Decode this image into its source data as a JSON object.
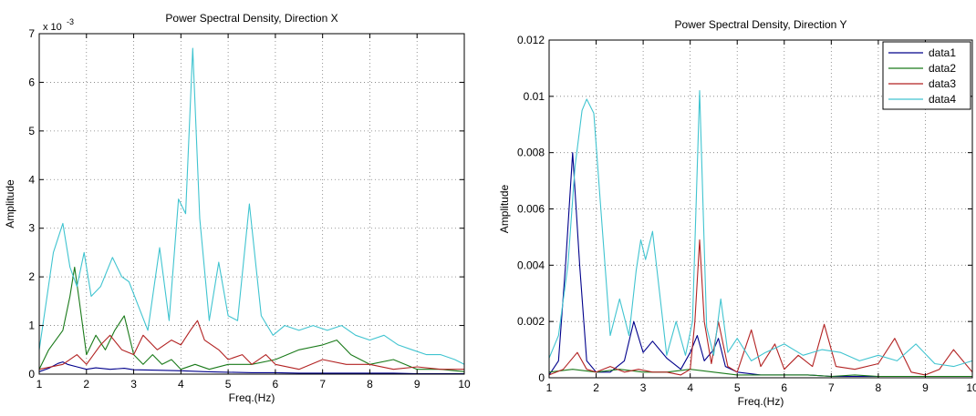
{
  "chart_data": [
    {
      "type": "line",
      "title": "Power Spectral Density, Direction X",
      "xlabel": "Freq.(Hz)",
      "ylabel": "Amplitude",
      "xlim": [
        1,
        10
      ],
      "ylim": [
        0,
        0.007
      ],
      "xticks": [
        1,
        2,
        3,
        4,
        5,
        6,
        7,
        8,
        9,
        10
      ],
      "xtick_labels": [
        "1",
        "2",
        "3",
        "4",
        "5",
        "6",
        "7",
        "8",
        "9",
        "10"
      ],
      "yticks": [
        0,
        0.001,
        0.002,
        0.003,
        0.004,
        0.005,
        0.006,
        0.007
      ],
      "ytick_labels": [
        "0",
        "1",
        "2",
        "3",
        "4",
        "5",
        "6",
        "7"
      ],
      "y_exponent_label": "x 10",
      "y_exponent_power": "-3",
      "grid": true,
      "legend": null,
      "series": [
        {
          "color": "#00008b",
          "x": [
            1.0,
            1.2,
            1.4,
            1.5,
            1.6,
            1.8,
            2.0,
            2.2,
            2.5,
            2.8,
            3.0,
            3.5,
            4.0,
            4.5,
            5.0,
            5.5,
            6.0,
            6.5,
            7.0,
            7.5,
            8.0,
            8.5,
            9.0,
            9.5,
            10.0
          ],
          "y": [
            5e-05,
            0.00012,
            0.00022,
            0.00025,
            0.0002,
            0.00015,
            0.0001,
            0.00013,
            0.0001,
            0.00012,
            9e-05,
            8e-05,
            7e-05,
            5e-05,
            4e-05,
            3e-05,
            3e-05,
            2e-05,
            2e-05,
            2e-05,
            2e-05,
            2e-05,
            1e-05,
            1e-05,
            1e-05
          ]
        },
        {
          "color": "#1a7a1a",
          "x": [
            1.0,
            1.2,
            1.5,
            1.65,
            1.75,
            1.85,
            2.0,
            2.2,
            2.4,
            2.6,
            2.8,
            3.0,
            3.2,
            3.4,
            3.6,
            3.8,
            4.0,
            4.3,
            4.6,
            5.0,
            5.5,
            6.0,
            6.5,
            7.0,
            7.3,
            7.6,
            8.0,
            8.5,
            9.0,
            9.5,
            10.0
          ],
          "y": [
            0.0001,
            0.0005,
            0.0009,
            0.0016,
            0.0022,
            0.0015,
            0.0004,
            0.0008,
            0.0005,
            0.0009,
            0.0012,
            0.0004,
            0.0002,
            0.0004,
            0.0002,
            0.0003,
            0.0001,
            0.0002,
            0.0001,
            0.0002,
            0.0002,
            0.0003,
            0.0005,
            0.0006,
            0.0007,
            0.0004,
            0.0002,
            0.0003,
            0.0001,
            0.0001,
            5e-05
          ]
        },
        {
          "color": "#b22222",
          "x": [
            1.0,
            1.5,
            1.8,
            2.0,
            2.3,
            2.5,
            2.75,
            3.0,
            3.2,
            3.5,
            3.8,
            4.0,
            4.2,
            4.35,
            4.5,
            4.8,
            5.0,
            5.3,
            5.5,
            5.8,
            6.0,
            6.5,
            7.0,
            7.5,
            8.0,
            8.5,
            9.0,
            9.5,
            10.0
          ],
          "y": [
            0.0001,
            0.0002,
            0.0004,
            0.0002,
            0.0006,
            0.0008,
            0.0005,
            0.0004,
            0.0008,
            0.0005,
            0.0007,
            0.0006,
            0.0009,
            0.0011,
            0.0007,
            0.0005,
            0.0003,
            0.0004,
            0.0002,
            0.0004,
            0.0002,
            0.0001,
            0.0003,
            0.0002,
            0.0002,
            0.0001,
            0.00015,
            0.0001,
            0.0001
          ]
        },
        {
          "color": "#40c4d0",
          "x": [
            1.0,
            1.15,
            1.3,
            1.5,
            1.65,
            1.8,
            1.95,
            2.1,
            2.3,
            2.55,
            2.75,
            2.9,
            3.1,
            3.3,
            3.55,
            3.75,
            3.95,
            4.1,
            4.25,
            4.4,
            4.6,
            4.8,
            5.0,
            5.2,
            5.45,
            5.7,
            5.95,
            6.2,
            6.5,
            6.8,
            7.1,
            7.4,
            7.7,
            8.0,
            8.3,
            8.6,
            8.9,
            9.2,
            9.5,
            9.8,
            10.0
          ],
          "y": [
            0.0005,
            0.0015,
            0.0025,
            0.0031,
            0.0022,
            0.0018,
            0.0025,
            0.0016,
            0.0018,
            0.0024,
            0.002,
            0.0019,
            0.0014,
            0.0009,
            0.0026,
            0.0011,
            0.0036,
            0.0033,
            0.0067,
            0.0032,
            0.0011,
            0.0023,
            0.0012,
            0.0011,
            0.0035,
            0.0012,
            0.0008,
            0.001,
            0.0009,
            0.001,
            0.0009,
            0.001,
            0.0008,
            0.0007,
            0.0008,
            0.0006,
            0.0005,
            0.0004,
            0.0004,
            0.0003,
            0.0002
          ]
        }
      ]
    },
    {
      "type": "line",
      "title": "Power Spectral Density, Direction Y",
      "xlabel": "Freq.(Hz)",
      "ylabel": "Amplitude",
      "xlim": [
        1,
        10
      ],
      "ylim": [
        0,
        0.012
      ],
      "xticks": [
        1,
        2,
        3,
        4,
        5,
        6,
        7,
        8,
        9,
        10
      ],
      "xtick_labels": [
        "1",
        "2",
        "3",
        "4",
        "5",
        "6",
        "7",
        "8",
        "9",
        "10"
      ],
      "yticks": [
        0,
        0.002,
        0.004,
        0.006,
        0.008,
        0.01,
        0.012
      ],
      "ytick_labels": [
        "0",
        "0.002",
        "0.004",
        "0.006",
        "0.008",
        "0.01",
        "0.012"
      ],
      "grid": true,
      "legend": "top-right",
      "series": [
        {
          "name": "data1",
          "color": "#00008b",
          "x": [
            1.0,
            1.2,
            1.35,
            1.5,
            1.65,
            1.8,
            2.0,
            2.3,
            2.6,
            2.8,
            3.0,
            3.2,
            3.5,
            3.8,
            4.0,
            4.15,
            4.3,
            4.5,
            4.6,
            4.75,
            5.0,
            5.5,
            6.0,
            6.5,
            7.0,
            7.5,
            8.0,
            8.5,
            9.0,
            9.5,
            10.0
          ],
          "y": [
            0.0001,
            0.0006,
            0.004,
            0.008,
            0.004,
            0.0006,
            0.0002,
            0.0002,
            0.0006,
            0.002,
            0.0009,
            0.0013,
            0.0007,
            0.0003,
            0.0009,
            0.0015,
            0.0006,
            0.001,
            0.0014,
            0.0004,
            0.0002,
            0.0001,
            0.0001,
            0.0001,
            5e-05,
            5e-05,
            5e-05,
            5e-05,
            5e-05,
            5e-05,
            5e-05
          ]
        },
        {
          "name": "data2",
          "color": "#1a7a1a",
          "x": [
            1.0,
            1.5,
            2.0,
            2.5,
            3.0,
            3.5,
            4.0,
            4.5,
            5.0,
            5.5,
            6.0,
            6.5,
            7.0,
            7.5,
            8.0,
            8.5,
            9.0,
            9.5,
            10.0
          ],
          "y": [
            0.0002,
            0.0003,
            0.0002,
            0.0003,
            0.0002,
            0.0002,
            0.0003,
            0.0002,
            0.0001,
            0.0001,
            0.0001,
            0.0001,
            5e-05,
            0.0001,
            5e-05,
            5e-05,
            5e-05,
            5e-05,
            5e-05
          ]
        },
        {
          "name": "data3",
          "color": "#b22222",
          "x": [
            1.0,
            1.3,
            1.6,
            1.8,
            2.0,
            2.3,
            2.6,
            2.9,
            3.2,
            3.5,
            3.8,
            4.0,
            4.1,
            4.2,
            4.3,
            4.45,
            4.6,
            4.8,
            5.0,
            5.3,
            5.5,
            5.8,
            6.0,
            6.3,
            6.6,
            6.85,
            7.1,
            7.5,
            8.0,
            8.35,
            8.7,
            9.0,
            9.3,
            9.6,
            10.0
          ],
          "y": [
            0.0001,
            0.0003,
            0.0009,
            0.0003,
            0.0002,
            0.0004,
            0.0002,
            0.0003,
            0.0002,
            0.0002,
            0.0001,
            0.0003,
            0.002,
            0.0049,
            0.002,
            0.0005,
            0.002,
            0.0004,
            0.0002,
            0.0017,
            0.0004,
            0.0012,
            0.0003,
            0.0008,
            0.0004,
            0.0019,
            0.0004,
            0.0003,
            0.0005,
            0.0014,
            0.0002,
            0.0001,
            0.0003,
            0.001,
            0.0002
          ]
        },
        {
          "name": "data4",
          "color": "#40c4d0",
          "x": [
            1.0,
            1.2,
            1.4,
            1.55,
            1.7,
            1.8,
            1.95,
            2.1,
            2.3,
            2.5,
            2.7,
            2.85,
            2.95,
            3.05,
            3.2,
            3.35,
            3.5,
            3.7,
            3.9,
            4.05,
            4.2,
            4.35,
            4.5,
            4.65,
            4.8,
            5.0,
            5.3,
            5.6,
            6.0,
            6.4,
            6.8,
            7.2,
            7.6,
            8.0,
            8.4,
            8.8,
            9.2,
            9.6,
            10.0
          ],
          "y": [
            0.0007,
            0.0015,
            0.004,
            0.0075,
            0.0095,
            0.0099,
            0.0094,
            0.006,
            0.0015,
            0.0028,
            0.0015,
            0.0038,
            0.0049,
            0.0042,
            0.0052,
            0.003,
            0.0008,
            0.002,
            0.0008,
            0.002,
            0.0102,
            0.0018,
            0.0008,
            0.0028,
            0.0009,
            0.0014,
            0.0006,
            0.0009,
            0.0012,
            0.0008,
            0.001,
            0.0009,
            0.0006,
            0.0008,
            0.0006,
            0.0012,
            0.0005,
            0.0004,
            0.0006
          ]
        }
      ]
    }
  ]
}
